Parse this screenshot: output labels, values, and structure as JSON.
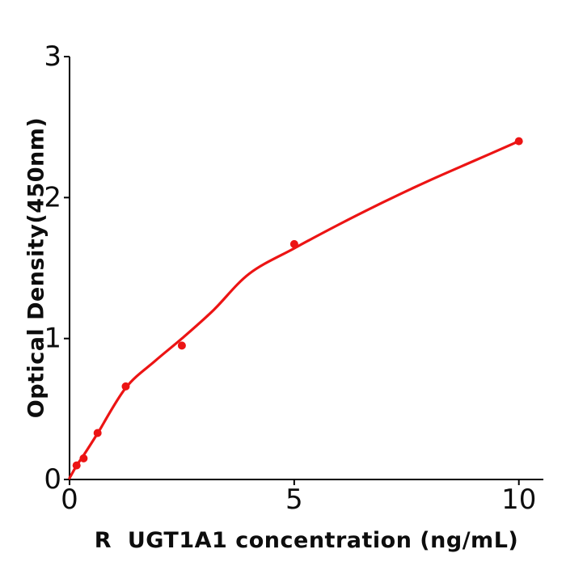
{
  "figure": {
    "background": "#ffffff",
    "axis_color": "#000000",
    "accent_color": "#ec1414"
  },
  "chart_data": {
    "type": "scatter",
    "title": "",
    "xlabel": "R  UGT1A1 concentration (ng/mL)",
    "ylabel": "Optical Density(450nm)",
    "xlim": [
      0,
      10.55
    ],
    "ylim": [
      0,
      3
    ],
    "x_ticks": [
      0,
      5,
      10
    ],
    "x_tick_labels": [
      "0",
      "5",
      "10"
    ],
    "y_ticks": [
      0,
      1,
      2,
      3
    ],
    "y_tick_labels": [
      "0",
      "1",
      "2",
      "3"
    ],
    "grid": false,
    "legend": "none",
    "series": [
      {
        "name": "standard-points",
        "type": "scatter",
        "color": "#ec1414",
        "marker": "circle",
        "marker_radius": 5,
        "x": [
          0.156,
          0.3125,
          0.625,
          1.25,
          2.5,
          5,
          10
        ],
        "y": [
          0.1,
          0.15,
          0.33,
          0.66,
          0.95,
          1.67,
          2.4
        ]
      },
      {
        "name": "fitted-curve",
        "type": "line",
        "color": "#ec1414",
        "stroke_width": 3.2,
        "x": [
          0,
          0.16,
          0.31,
          0.63,
          1.25,
          1.9,
          2.5,
          3.2,
          4.0,
          5.0,
          6.0,
          7.0,
          8.0,
          9.0,
          10.0
        ],
        "y": [
          0.01,
          0.1,
          0.17,
          0.33,
          0.65,
          0.84,
          1.0,
          1.2,
          1.46,
          1.64,
          1.81,
          1.97,
          2.12,
          2.26,
          2.4
        ]
      }
    ]
  }
}
